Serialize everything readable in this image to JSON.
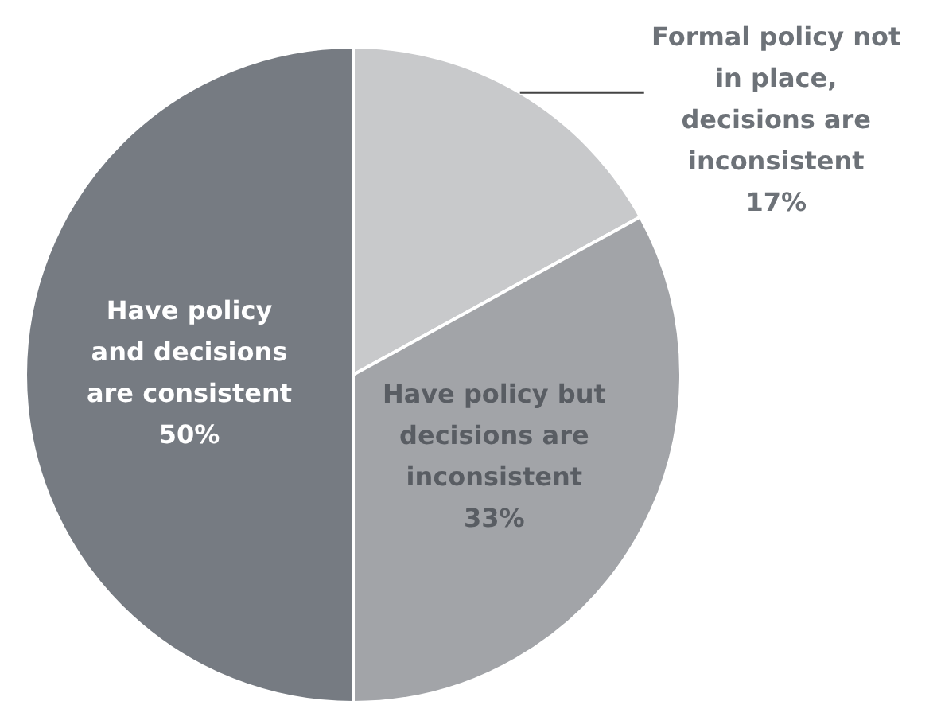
{
  "chart_data": {
    "type": "pie",
    "categories": [
      "Formal policy not in place, decisions are inconsistent",
      "Have policy but decisions are inconsistent",
      "Have policy and decisions are consistent"
    ],
    "values": [
      17,
      33,
      50
    ],
    "colors": [
      "#c8c9cb",
      "#a2a4a8",
      "#767b82"
    ],
    "value_labels": [
      "17%",
      "33%",
      "50%"
    ],
    "legend": false
  }
}
